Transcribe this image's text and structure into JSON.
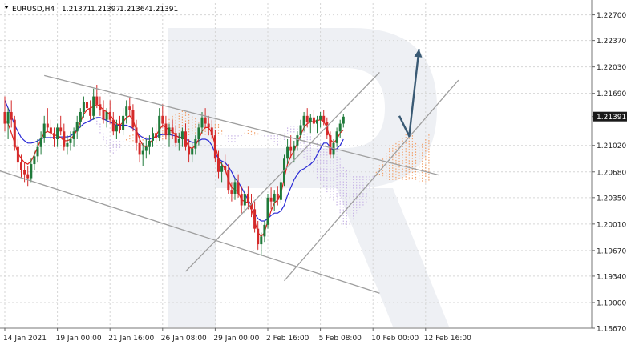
{
  "chart_data": {
    "type": "candlestick",
    "title": "EURUSD,H4",
    "ohlc_header": [
      "1.21371",
      "1.21397",
      "1.21364",
      "1.21391"
    ],
    "current_price": "1.21391",
    "ylim": [
      1.1867,
      1.2285
    ],
    "y_ticks": [
      "1.22700",
      "1.22370",
      "1.22030",
      "1.21690",
      "1.21391",
      "1.21020",
      "1.20680",
      "1.20350",
      "1.20010",
      "1.19670",
      "1.19340",
      "1.19000",
      "1.18670"
    ],
    "y_tick_values": [
      1.227,
      1.2237,
      1.2203,
      1.2169,
      1.21391,
      1.2102,
      1.2068,
      1.2035,
      1.2001,
      1.1967,
      1.1934,
      1.19,
      1.1867
    ],
    "x_ticks": [
      "14 Jan 2021",
      "19 Jan 00:00",
      "21 Jan 16:00",
      "26 Jan 08:00",
      "29 Jan 00:00",
      "2 Feb 16:00",
      "5 Feb 08:00",
      "10 Feb 00:00",
      "12 Feb 16:00"
    ],
    "x_tick_index": [
      0,
      16,
      32,
      48,
      64,
      80,
      96,
      112,
      128
    ],
    "candles": [
      [
        1.2145,
        1.2165,
        1.212,
        1.213
      ],
      [
        1.213,
        1.215,
        1.211,
        1.2145
      ],
      [
        1.2145,
        1.216,
        1.2125,
        1.2135
      ],
      [
        1.2135,
        1.214,
        1.2095,
        1.21
      ],
      [
        1.21,
        1.211,
        1.207,
        1.208
      ],
      [
        1.208,
        1.209,
        1.206,
        1.207
      ],
      [
        1.207,
        1.208,
        1.2055,
        1.2065
      ],
      [
        1.2065,
        1.2075,
        1.205,
        1.206
      ],
      [
        1.206,
        1.2085,
        1.2055,
        1.2078
      ],
      [
        1.2078,
        1.2095,
        1.207,
        1.2088
      ],
      [
        1.2088,
        1.211,
        1.208,
        1.21
      ],
      [
        1.21,
        1.212,
        1.209,
        1.2112
      ],
      [
        1.2112,
        1.214,
        1.2105,
        1.213
      ],
      [
        1.213,
        1.215,
        1.212,
        1.2125
      ],
      [
        1.2125,
        1.2135,
        1.211,
        1.2118
      ],
      [
        1.2118,
        1.2125,
        1.21,
        1.211
      ],
      [
        1.211,
        1.213,
        1.21,
        1.2125
      ],
      [
        1.2125,
        1.214,
        1.2115,
        1.212
      ],
      [
        1.212,
        1.213,
        1.2095,
        1.21
      ],
      [
        1.21,
        1.2115,
        1.209,
        1.2105
      ],
      [
        1.2105,
        1.212,
        1.2095,
        1.211
      ],
      [
        1.211,
        1.2125,
        1.21,
        1.212
      ],
      [
        1.212,
        1.214,
        1.211,
        1.2132
      ],
      [
        1.2132,
        1.215,
        1.2125,
        1.2145
      ],
      [
        1.2145,
        1.2165,
        1.2138,
        1.2158
      ],
      [
        1.2158,
        1.217,
        1.2145,
        1.215
      ],
      [
        1.215,
        1.216,
        1.2135,
        1.214
      ],
      [
        1.214,
        1.2175,
        1.2135,
        1.2165
      ],
      [
        1.2165,
        1.218,
        1.215,
        1.2155
      ],
      [
        1.2155,
        1.2165,
        1.214,
        1.2148
      ],
      [
        1.2148,
        1.216,
        1.213,
        1.2135
      ],
      [
        1.2135,
        1.215,
        1.2125,
        1.2145
      ],
      [
        1.2145,
        1.216,
        1.213,
        1.2135
      ],
      [
        1.2135,
        1.2145,
        1.2115,
        1.212
      ],
      [
        1.212,
        1.2135,
        1.211,
        1.2128
      ],
      [
        1.2128,
        1.214,
        1.2118,
        1.2122
      ],
      [
        1.2122,
        1.215,
        1.2115,
        1.214
      ],
      [
        1.214,
        1.216,
        1.213,
        1.2152
      ],
      [
        1.2152,
        1.2165,
        1.214,
        1.2148
      ],
      [
        1.2148,
        1.2155,
        1.212,
        1.2125
      ],
      [
        1.2125,
        1.2135,
        1.2095,
        1.2105
      ],
      [
        1.2105,
        1.2115,
        1.208,
        1.209
      ],
      [
        1.209,
        1.2105,
        1.2075,
        1.2095
      ],
      [
        1.2095,
        1.211,
        1.2085,
        1.21
      ],
      [
        1.21,
        1.2115,
        1.209,
        1.2108
      ],
      [
        1.2108,
        1.2125,
        1.21,
        1.2118
      ],
      [
        1.2118,
        1.213,
        1.2105,
        1.2112
      ],
      [
        1.2112,
        1.215,
        1.2108,
        1.214
      ],
      [
        1.214,
        1.2155,
        1.2125,
        1.213
      ],
      [
        1.213,
        1.214,
        1.211,
        1.2115
      ],
      [
        1.2115,
        1.213,
        1.21,
        1.2125
      ],
      [
        1.2125,
        1.2135,
        1.211,
        1.2118
      ],
      [
        1.2118,
        1.2128,
        1.21,
        1.2105
      ],
      [
        1.2105,
        1.2118,
        1.2095,
        1.211
      ],
      [
        1.211,
        1.2125,
        1.21,
        1.212
      ],
      [
        1.212,
        1.213,
        1.2095,
        1.21
      ],
      [
        1.21,
        1.211,
        1.208,
        1.209
      ],
      [
        1.209,
        1.2105,
        1.208,
        1.2098
      ],
      [
        1.2098,
        1.2115,
        1.209,
        1.211
      ],
      [
        1.211,
        1.213,
        1.2102,
        1.2125
      ],
      [
        1.2125,
        1.2145,
        1.2118,
        1.2138
      ],
      [
        1.2138,
        1.215,
        1.2125,
        1.213
      ],
      [
        1.213,
        1.214,
        1.2115,
        1.2125
      ],
      [
        1.2125,
        1.2135,
        1.211,
        1.2115
      ],
      [
        1.2115,
        1.2122,
        1.208,
        1.2085
      ],
      [
        1.2085,
        1.2095,
        1.206,
        1.2068
      ],
      [
        1.2068,
        1.208,
        1.2055,
        1.2075
      ],
      [
        1.2075,
        1.209,
        1.2065,
        1.207
      ],
      [
        1.207,
        1.2078,
        1.204,
        1.2045
      ],
      [
        1.2045,
        1.2055,
        1.203,
        1.204
      ],
      [
        1.204,
        1.206,
        1.2032,
        1.2055
      ],
      [
        1.2055,
        1.2065,
        1.2035,
        1.204
      ],
      [
        1.204,
        1.205,
        1.2015,
        1.2025
      ],
      [
        1.2025,
        1.2045,
        1.2015,
        1.204
      ],
      [
        1.204,
        1.205,
        1.202,
        1.2028
      ],
      [
        1.2028,
        1.204,
        1.201,
        1.202
      ],
      [
        1.202,
        1.203,
        1.199,
        1.1995
      ],
      [
        1.1995,
        1.2005,
        1.1968,
        1.1975
      ],
      [
        1.1975,
        1.199,
        1.196,
        1.1985
      ],
      [
        1.1985,
        1.2005,
        1.1978,
        1.2
      ],
      [
        1.2,
        1.204,
        1.1995,
        1.2035
      ],
      [
        1.2035,
        1.2048,
        1.202,
        1.203
      ],
      [
        1.203,
        1.2045,
        1.2018,
        1.204
      ],
      [
        1.204,
        1.205,
        1.2025,
        1.2032
      ],
      [
        1.2032,
        1.206,
        1.2028,
        1.2055
      ],
      [
        1.2055,
        1.209,
        1.205,
        1.2085
      ],
      [
        1.2085,
        1.211,
        1.2078,
        1.21
      ],
      [
        1.21,
        1.2115,
        1.2085,
        1.2095
      ],
      [
        1.2095,
        1.2108,
        1.208,
        1.2102
      ],
      [
        1.2102,
        1.212,
        1.2095,
        1.2115
      ],
      [
        1.2115,
        1.2135,
        1.2108,
        1.2128
      ],
      [
        1.2128,
        1.2145,
        1.212,
        1.214
      ],
      [
        1.214,
        1.215,
        1.2125,
        1.2132
      ],
      [
        1.2132,
        1.2142,
        1.2118,
        1.2138
      ],
      [
        1.2138,
        1.2148,
        1.2125,
        1.213
      ],
      [
        1.213,
        1.214,
        1.2118,
        1.2135
      ],
      [
        1.2135,
        1.2145,
        1.2125,
        1.214
      ],
      [
        1.214,
        1.2148,
        1.2128,
        1.2132
      ],
      [
        1.2132,
        1.2138,
        1.211,
        1.2115
      ],
      [
        1.2115,
        1.212,
        1.2085,
        1.209
      ],
      [
        1.209,
        1.211,
        1.2085,
        1.2105
      ],
      [
        1.2105,
        1.2125,
        1.21,
        1.212
      ],
      [
        1.212,
        1.2135,
        1.2112,
        1.213
      ],
      [
        1.213,
        1.2142,
        1.2125,
        1.2139
      ]
    ],
    "tenkan": [
      1.2135,
      1.213,
      1.2118,
      1.2105,
      1.2092,
      1.2085,
      1.208,
      1.2078,
      1.2082,
      1.209,
      1.21,
      1.211,
      1.2118,
      1.212,
      1.2118,
      1.2115,
      1.2115,
      1.2112,
      1.2108,
      1.2108,
      1.211,
      1.2115,
      1.2122,
      1.2132,
      1.2142,
      1.2148,
      1.215,
      1.2152,
      1.2155,
      1.2152,
      1.2148,
      1.2145,
      1.2142,
      1.2135,
      1.213,
      1.2128,
      1.2132,
      1.2138,
      1.214,
      1.2135,
      1.2122,
      1.211,
      1.2102,
      1.21,
      1.2104,
      1.211,
      1.2115,
      1.2122,
      1.2128,
      1.2125,
      1.2122,
      1.212,
      1.2115,
      1.2112,
      1.2112,
      1.2108,
      1.21,
      1.2098,
      1.2102,
      1.211,
      1.212,
      1.2125,
      1.2125,
      1.2118,
      1.2102,
      1.2085,
      1.2078,
      1.2072,
      1.2058,
      1.2048,
      1.2045,
      1.2042,
      1.2032,
      1.203,
      1.2028,
      1.202,
      1.2005,
      1.199,
      1.1985,
      1.199,
      1.2005,
      1.2018,
      1.2028,
      1.2032,
      1.204,
      1.206,
      1.2078,
      1.2088,
      1.2095,
      1.2105,
      1.2115,
      1.2125,
      1.213,
      1.2132,
      1.2133,
      1.2134,
      1.2135,
      1.2133,
      1.2125,
      1.211,
      1.2105,
      1.211,
      1.2118,
      1.2122
    ],
    "kijun": [
      1.216,
      1.215,
      1.214,
      1.2128,
      1.212,
      1.2112,
      1.2108,
      1.2105,
      1.2105,
      1.2106,
      1.2108,
      1.211,
      1.2112,
      1.2112,
      1.2112,
      1.2112,
      1.2112,
      1.2113,
      1.2113,
      1.2113,
      1.2114,
      1.2118,
      1.2122,
      1.2126,
      1.213,
      1.2132,
      1.2134,
      1.2136,
      1.2138,
      1.2138,
      1.2136,
      1.2134,
      1.2132,
      1.213,
      1.2128,
      1.2128,
      1.2128,
      1.2128,
      1.2126,
      1.2124,
      1.212,
      1.2115,
      1.2112,
      1.211,
      1.211,
      1.2112,
      1.2113,
      1.2115,
      1.2116,
      1.2116,
      1.2116,
      1.2115,
      1.2114,
      1.2113,
      1.2112,
      1.211,
      1.2108,
      1.2106,
      1.2106,
      1.2108,
      1.211,
      1.211,
      1.2108,
      1.2102,
      1.2092,
      1.2085,
      1.2082,
      1.208,
      1.2075,
      1.2068,
      1.206,
      1.2055,
      1.2048,
      1.204,
      1.2032,
      1.2025,
      1.2015,
      1.2008,
      1.2005,
      1.2005,
      1.2008,
      1.2012,
      1.2015,
      1.2015,
      1.2018,
      1.2025,
      1.2038,
      1.2048,
      1.2058,
      1.2065,
      1.207,
      1.2072,
      1.2075,
      1.2078,
      1.2082,
      1.209,
      1.2098,
      1.2105,
      1.2105,
      1.21,
      1.2095,
      1.2098,
      1.2102,
      1.211
    ],
    "channels": [
      {
        "points": [
          [
            12,
            1.2192
          ],
          [
            132,
            1.2064
          ]
        ]
      },
      {
        "points": [
          [
            -2,
            1.207
          ],
          [
            114,
            1.1912
          ]
        ]
      },
      {
        "points": [
          [
            55,
            1.194
          ],
          [
            114,
            1.2196
          ]
        ]
      },
      {
        "points": [
          [
            85,
            1.1928
          ],
          [
            138,
            1.2186
          ]
        ]
      }
    ],
    "forecast_arrow": {
      "points": [
        [
          120,
          1.214
        ],
        [
          123,
          1.2114
        ],
        [
          126,
          1.2226
        ]
      ]
    }
  }
}
